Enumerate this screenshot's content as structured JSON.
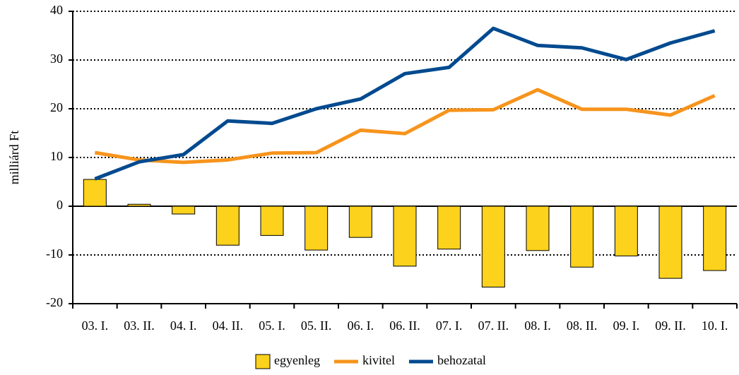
{
  "chart_data": {
    "type": "bar_line",
    "y_label": "milliárd Ft",
    "categories": [
      "03. I.",
      "03. II.",
      "04. I.",
      "04. II.",
      "05. I.",
      "05. II.",
      "06. I.",
      "06. II.",
      "07. I.",
      "07. II.",
      "08. I.",
      "08. II.",
      "09. I.",
      "09. II.",
      "10. I."
    ],
    "series": [
      {
        "name": "egyenleg",
        "type": "bar",
        "color": "#fcd21c",
        "values": [
          5.5,
          0.4,
          -1.6,
          -8,
          -6,
          -9,
          -6.4,
          -12.3,
          -8.8,
          -16.6,
          -9.1,
          -12.5,
          -10.2,
          -14.8,
          -13.2
        ]
      },
      {
        "name": "kivitel",
        "type": "line",
        "color": "#f7941d",
        "values": [
          11,
          9.5,
          9,
          9.5,
          10.9,
          11,
          15.6,
          14.9,
          19.7,
          19.8,
          23.9,
          19.9,
          19.9,
          18.7,
          22.7
        ]
      },
      {
        "name": "behozatal",
        "type": "line",
        "color": "#004a8f",
        "values": [
          5.6,
          9.1,
          10.6,
          17.5,
          17,
          20,
          22,
          27.2,
          28.5,
          36.5,
          33,
          32.5,
          30.1,
          33.5,
          36
        ]
      }
    ],
    "ylim": [
      -20,
      40
    ],
    "yticks": [
      -20,
      -10,
      0,
      10,
      20,
      30,
      40
    ],
    "grid": true,
    "legend": "bottom"
  }
}
